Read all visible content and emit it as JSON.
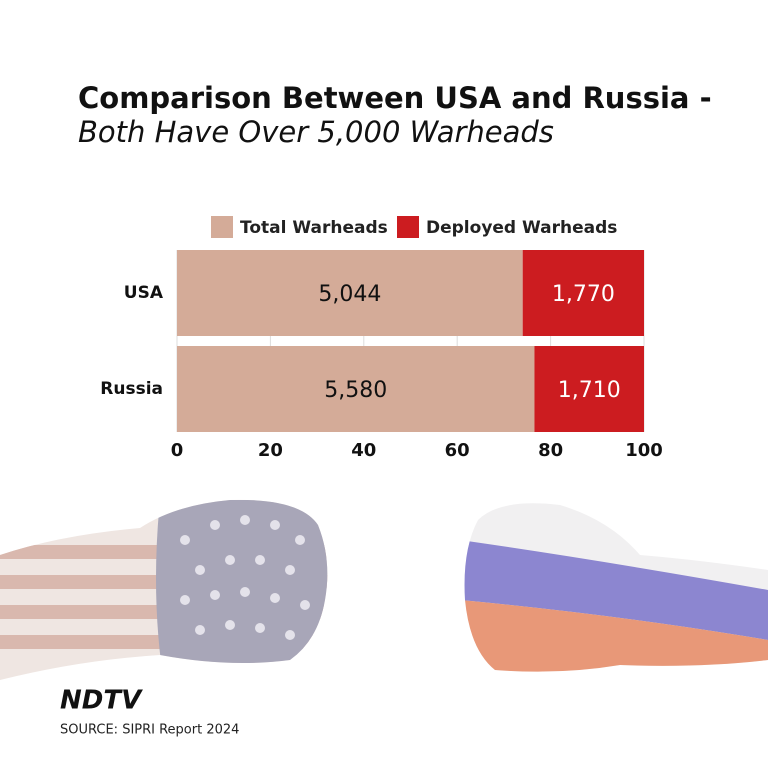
{
  "chart_data": {
    "type": "bar",
    "orientation": "horizontal",
    "stacking": "percent",
    "title": "Comparison Between USA and Russia -",
    "subtitle": "Both Have Over 5,000 Warheads",
    "categories": [
      "USA",
      "Russia"
    ],
    "series": [
      {
        "name": "Total Warheads",
        "color": "#d4ab98",
        "values": [
          5044,
          5580
        ],
        "value_labels": [
          "5,044",
          "5,580"
        ]
      },
      {
        "name": "Deployed Warheads",
        "color": "#cc1c20",
        "values": [
          1770,
          1710
        ],
        "value_labels": [
          "1,770",
          "1,710"
        ]
      }
    ],
    "xlim": [
      0,
      100
    ],
    "xticks": [
      0,
      20,
      40,
      60,
      80,
      100
    ],
    "grid": true
  },
  "brand": "NDTV",
  "source": "SOURCE: SIPRI Report 2024"
}
